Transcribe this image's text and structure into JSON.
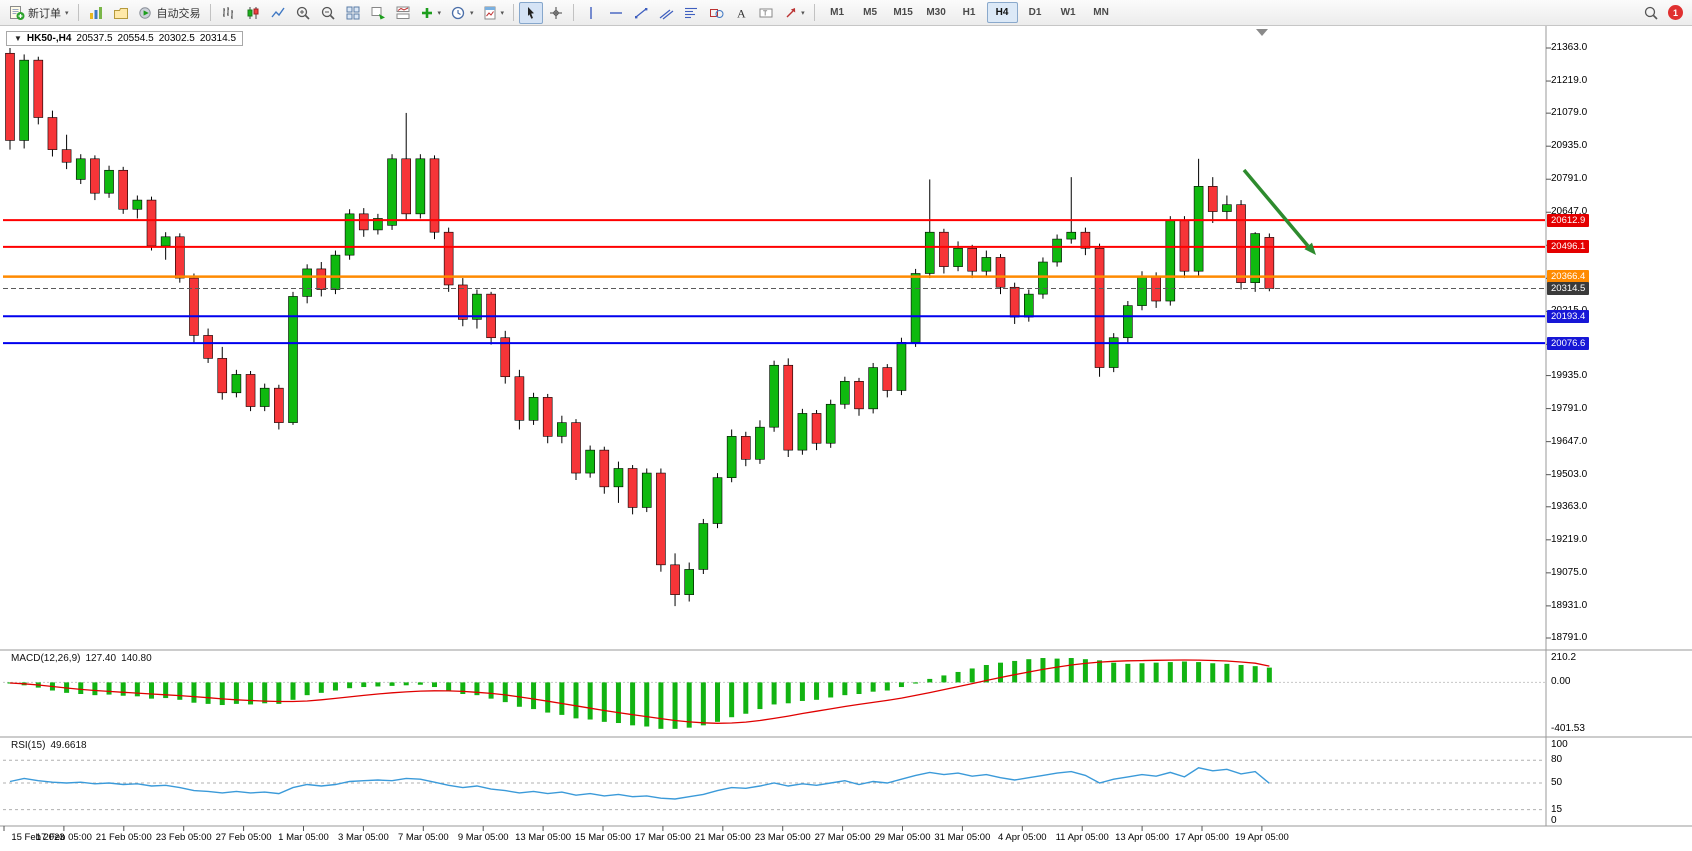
{
  "toolbar": {
    "new_order_label": "新订单",
    "algo_trading_label": "自动交易",
    "timeframes": [
      "M1",
      "M5",
      "M15",
      "M30",
      "H1",
      "H4",
      "D1",
      "W1",
      "MN"
    ],
    "active_timeframe": "H4",
    "notification_count": "1",
    "icon_names": [
      "new-order",
      "market-watch",
      "navigator",
      "algo-trading",
      "bar-chart",
      "candlestick-chart",
      "line-chart",
      "zoom-in",
      "zoom-out",
      "tile-windows",
      "arrange-charts",
      "chart-list",
      "add-indicator",
      "time-periods",
      "templates",
      "cursor",
      "crosshair",
      "vertical-line",
      "horizontal-line",
      "trendline",
      "equidistant-channel",
      "fibonacci",
      "shapes",
      "text",
      "text-label",
      "arrows",
      "search",
      "notifications"
    ]
  },
  "chart": {
    "symbol_period": "HK50-,H4",
    "open": "20537.5",
    "high": "20554.5",
    "low": "20302.5",
    "close": "20314.5"
  },
  "price_axis": {
    "labels": [
      "21363.0",
      "21219.0",
      "21079.0",
      "20935.0",
      "20791.0",
      "20647.0",
      "20503.0",
      "20359.0",
      "20215.0",
      "20071.0",
      "19935.0",
      "19791.0",
      "19647.0",
      "19503.0",
      "19363.0",
      "19219.0",
      "19075.0",
      "18931.0",
      "18791.0"
    ]
  },
  "price_badges": [
    {
      "text": "20612.9",
      "price": 20612.9,
      "color": "#e40000"
    },
    {
      "text": "20496.1",
      "price": 20496.1,
      "color": "#e40000"
    },
    {
      "text": "20366.4",
      "price": 20366.4,
      "color": "#ff8a00"
    },
    {
      "text": "20314.5",
      "price": 20314.5,
      "color": "#3a3a3a"
    },
    {
      "text": "20193.4",
      "price": 20193.4,
      "color": "#1717d6"
    },
    {
      "text": "20076.6",
      "price": 20076.6,
      "color": "#1717d6"
    }
  ],
  "levels": [
    {
      "name": "resistance-line-1",
      "price": 20612.9,
      "color": "#ff0000",
      "width": 2,
      "dashed": false
    },
    {
      "name": "resistance-line-2",
      "price": 20496.1,
      "color": "#ff0000",
      "width": 2,
      "dashed": false
    },
    {
      "name": "pivot-line",
      "price": 20366.4,
      "color": "#ff8a00",
      "width": 2.5,
      "dashed": false
    },
    {
      "name": "current-price-line",
      "price": 20314.5,
      "color": "#5a5a5a",
      "width": 1,
      "dashed": true
    },
    {
      "name": "support-line-1",
      "price": 20193.4,
      "color": "#0000ee",
      "width": 2,
      "dashed": false
    },
    {
      "name": "support-line-2",
      "price": 20076.6,
      "color": "#0000ee",
      "width": 2,
      "dashed": false
    }
  ],
  "time_axis": {
    "labels": [
      "15 Feb 2023",
      "17 Feb 05:00",
      "21 Feb 05:00",
      "23 Feb 05:00",
      "27 Feb 05:00",
      "1 Mar 05:00",
      "3 Mar 05:00",
      "7 Mar 05:00",
      "9 Mar 05:00",
      "13 Mar 05:00",
      "15 Mar 05:00",
      "17 Mar 05:00",
      "21 Mar 05:00",
      "23 Mar 05:00",
      "27 Mar 05:00",
      "29 Mar 05:00",
      "31 Mar 05:00",
      "4 Apr 05:00",
      "11 Apr 05:00",
      "13 Apr 05:00",
      "17 Apr 05:00",
      "19 Apr 05:00"
    ]
  },
  "chart_data": [
    {
      "type": "candlestick",
      "title": "HK50-,H4",
      "timeframe": "H4",
      "y_range": [
        18791.0,
        21363.0
      ],
      "x_range": [
        "15 Feb 2023",
        "19 Apr 2023"
      ],
      "grid": false,
      "up_color": "#0fb90f",
      "down_color": "#f63538",
      "annotation_arrow": {
        "color": "#2e8b2e",
        "direction": "down-right"
      },
      "candles": [
        [
          21340,
          21363,
          20920,
          20960
        ],
        [
          20960,
          21335,
          20925,
          21310
        ],
        [
          21310,
          21325,
          21030,
          21060
        ],
        [
          21060,
          21090,
          20890,
          20920
        ],
        [
          20920,
          20985,
          20835,
          20865
        ],
        [
          20790,
          20900,
          20770,
          20880
        ],
        [
          20880,
          20895,
          20700,
          20730
        ],
        [
          20730,
          20850,
          20710,
          20830
        ],
        [
          20830,
          20845,
          20640,
          20660
        ],
        [
          20660,
          20720,
          20620,
          20700
        ],
        [
          20700,
          20715,
          20480,
          20500
        ],
        [
          20500,
          20560,
          20440,
          20540
        ],
        [
          20540,
          20555,
          20340,
          20360
        ],
        [
          20360,
          20380,
          20080,
          20110
        ],
        [
          20110,
          20140,
          19990,
          20010
        ],
        [
          20010,
          20060,
          19830,
          19860
        ],
        [
          19860,
          19960,
          19840,
          19940
        ],
        [
          19940,
          19955,
          19780,
          19800
        ],
        [
          19800,
          19900,
          19780,
          19880
        ],
        [
          19880,
          19895,
          19700,
          19730
        ],
        [
          19730,
          20300,
          19720,
          20280
        ],
        [
          20280,
          20420,
          20250,
          20400
        ],
        [
          20400,
          20430,
          20280,
          20310
        ],
        [
          20310,
          20480,
          20290,
          20460
        ],
        [
          20460,
          20660,
          20440,
          20640
        ],
        [
          20640,
          20665,
          20540,
          20570
        ],
        [
          20570,
          20640,
          20550,
          20620
        ],
        [
          20590,
          20900,
          20570,
          20880
        ],
        [
          20880,
          21080,
          20610,
          20640
        ],
        [
          20640,
          20900,
          20620,
          20880
        ],
        [
          20880,
          20895,
          20530,
          20560
        ],
        [
          20560,
          20580,
          20300,
          20330
        ],
        [
          20330,
          20360,
          20150,
          20180
        ],
        [
          20180,
          20310,
          20140,
          20290
        ],
        [
          20290,
          20300,
          20070,
          20100
        ],
        [
          20100,
          20130,
          19900,
          19930
        ],
        [
          19930,
          19960,
          19700,
          19740
        ],
        [
          19740,
          19860,
          19720,
          19840
        ],
        [
          19840,
          19855,
          19640,
          19670
        ],
        [
          19670,
          19760,
          19640,
          19730
        ],
        [
          19730,
          19745,
          19480,
          19510
        ],
        [
          19510,
          19630,
          19490,
          19610
        ],
        [
          19610,
          19625,
          19420,
          19450
        ],
        [
          19450,
          19560,
          19380,
          19530
        ],
        [
          19530,
          19545,
          19330,
          19360
        ],
        [
          19360,
          19530,
          19340,
          19510
        ],
        [
          19510,
          19530,
          19080,
          19110
        ],
        [
          19110,
          19160,
          18930,
          18980
        ],
        [
          18980,
          19120,
          18950,
          19090
        ],
        [
          19090,
          19310,
          19070,
          19290
        ],
        [
          19290,
          19510,
          19270,
          19490
        ],
        [
          19490,
          19700,
          19470,
          19670
        ],
        [
          19670,
          19690,
          19540,
          19570
        ],
        [
          19570,
          19740,
          19550,
          19710
        ],
        [
          19710,
          20000,
          19690,
          19980
        ],
        [
          19980,
          20010,
          19580,
          19610
        ],
        [
          19610,
          19790,
          19590,
          19770
        ],
        [
          19770,
          19785,
          19610,
          19640
        ],
        [
          19640,
          19830,
          19620,
          19810
        ],
        [
          19810,
          19930,
          19790,
          19910
        ],
        [
          19910,
          19925,
          19760,
          19790
        ],
        [
          19790,
          19990,
          19770,
          19970
        ],
        [
          19970,
          19985,
          19840,
          19870
        ],
        [
          19870,
          20100,
          19850,
          20080
        ],
        [
          20080,
          20400,
          20060,
          20380
        ],
        [
          20380,
          20790,
          20360,
          20560
        ],
        [
          20560,
          20575,
          20380,
          20410
        ],
        [
          20410,
          20520,
          20390,
          20490
        ],
        [
          20490,
          20505,
          20360,
          20390
        ],
        [
          20390,
          20480,
          20370,
          20450
        ],
        [
          20450,
          20465,
          20290,
          20320
        ],
        [
          20320,
          20340,
          20160,
          20190
        ],
        [
          20190,
          20310,
          20170,
          20290
        ],
        [
          20290,
          20450,
          20270,
          20430
        ],
        [
          20430,
          20550,
          20410,
          20530
        ],
        [
          20530,
          20800,
          20510,
          20560
        ],
        [
          20560,
          20580,
          20460,
          20490
        ],
        [
          20490,
          20510,
          19930,
          19970
        ],
        [
          19970,
          20120,
          19950,
          20100
        ],
        [
          20100,
          20260,
          20080,
          20240
        ],
        [
          20240,
          20390,
          20220,
          20370
        ],
        [
          20370,
          20385,
          20230,
          20260
        ],
        [
          20260,
          20630,
          20240,
          20610
        ],
        [
          20610,
          20630,
          20360,
          20390
        ],
        [
          20390,
          20880,
          20370,
          20760
        ],
        [
          20760,
          20800,
          20600,
          20650
        ],
        [
          20650,
          20720,
          20610,
          20680
        ],
        [
          20680,
          20700,
          20310,
          20340
        ],
        [
          20340,
          20560,
          20300,
          20554
        ],
        [
          20537.5,
          20554.5,
          20302.5,
          20314.5
        ]
      ]
    },
    {
      "type": "bar",
      "label": "MACD(12,26,9)",
      "value_main": "127.40",
      "value_signal": "140.80",
      "scale": [
        "210.2",
        "0.00",
        "-401.53"
      ],
      "y_range": [
        -401.53,
        210.2
      ],
      "histogram_color": "#12b312",
      "signal_color": "#e00000",
      "histogram": [
        -10,
        -25,
        -45,
        -70,
        -90,
        -100,
        -110,
        -105,
        -115,
        -120,
        -140,
        -135,
        -150,
        -175,
        -185,
        -195,
        -185,
        -190,
        -180,
        -185,
        -150,
        -110,
        -90,
        -70,
        -50,
        -40,
        -35,
        -30,
        -25,
        -20,
        -40,
        -70,
        -100,
        -110,
        -140,
        -170,
        -210,
        -230,
        -260,
        -280,
        -310,
        -320,
        -340,
        -350,
        -370,
        -380,
        -400,
        -400,
        -390,
        -370,
        -340,
        -300,
        -270,
        -230,
        -190,
        -180,
        -160,
        -150,
        -130,
        -110,
        -100,
        -80,
        -70,
        -40,
        -10,
        30,
        60,
        90,
        120,
        150,
        170,
        185,
        200,
        210,
        205,
        210,
        200,
        190,
        170,
        160,
        165,
        170,
        175,
        180,
        175,
        165,
        160,
        150,
        140,
        127.4
      ],
      "signal": [
        -5,
        -12,
        -22,
        -35,
        -48,
        -60,
        -70,
        -78,
        -85,
        -92,
        -100,
        -107,
        -114,
        -122,
        -132,
        -142,
        -150,
        -156,
        -161,
        -165,
        -165,
        -160,
        -150,
        -138,
        -125,
        -112,
        -100,
        -90,
        -82,
        -75,
        -72,
        -73,
        -78,
        -85,
        -95,
        -108,
        -125,
        -143,
        -162,
        -182,
        -202,
        -222,
        -242,
        -260,
        -278,
        -295,
        -312,
        -328,
        -340,
        -348,
        -352,
        -350,
        -342,
        -328,
        -310,
        -290,
        -268,
        -248,
        -228,
        -208,
        -190,
        -172,
        -155,
        -135,
        -112,
        -88,
        -62,
        -36,
        -10,
        16,
        42,
        66,
        90,
        112,
        132,
        150,
        164,
        175,
        182,
        186,
        188,
        190,
        192,
        193,
        192,
        189,
        184,
        176,
        165,
        140.8
      ]
    },
    {
      "type": "line",
      "label": "RSI(15)",
      "value": "49.6618",
      "scale": [
        "100",
        "80",
        "50",
        "15",
        "0"
      ],
      "levels": [
        80,
        50,
        15
      ],
      "y_range": [
        0,
        100
      ],
      "line_color": "#3b9ad9",
      "values": [
        52,
        56,
        53,
        51,
        50,
        51,
        49,
        50,
        48,
        49,
        46,
        47,
        44,
        40,
        39,
        37,
        39,
        37,
        38,
        36,
        44,
        48,
        46,
        48,
        52,
        53,
        54,
        53,
        56,
        55,
        51,
        47,
        44,
        46,
        42,
        40,
        37,
        39,
        36,
        38,
        34,
        36,
        33,
        35,
        32,
        33,
        30,
        29,
        32,
        35,
        40,
        44,
        43,
        46,
        50,
        46,
        49,
        47,
        50,
        53,
        48,
        52,
        50,
        55,
        60,
        64,
        61,
        63,
        59,
        61,
        57,
        54,
        57,
        60,
        63,
        65,
        60,
        50,
        55,
        58,
        61,
        59,
        64,
        58,
        70,
        66,
        68,
        62,
        65,
        49.66
      ]
    }
  ]
}
